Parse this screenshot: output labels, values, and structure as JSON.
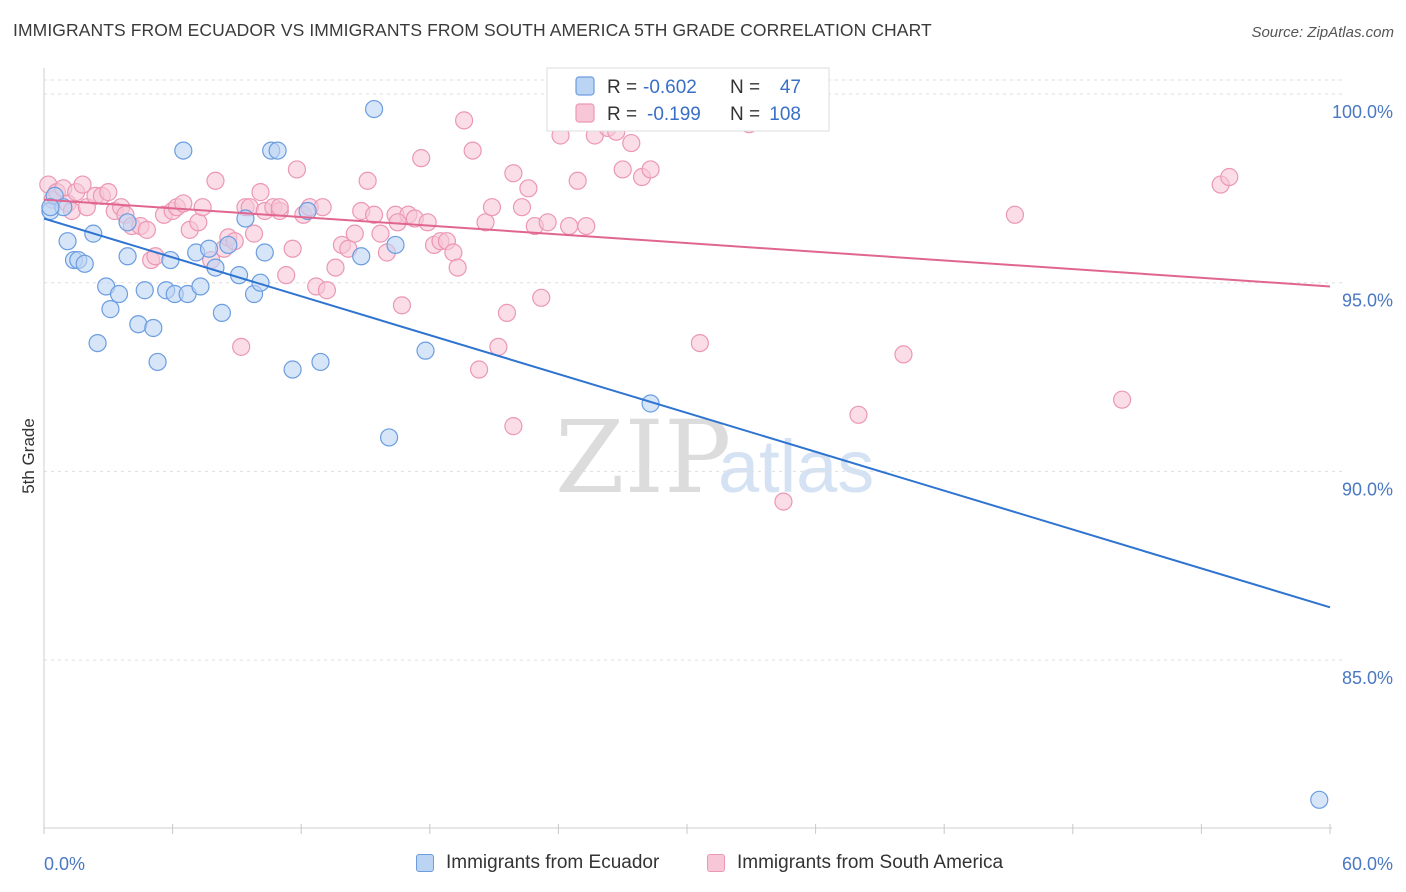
{
  "header": {
    "title": "IMMIGRANTS FROM ECUADOR VS IMMIGRANTS FROM SOUTH AMERICA 5TH GRADE CORRELATION CHART",
    "source": "Source: ZipAtlas.com"
  },
  "watermark": {
    "zip": "ZIP",
    "atlas": "atlas"
  },
  "chart_data": {
    "type": "scatter",
    "title": "IMMIGRANTS FROM ECUADOR VS IMMIGRANTS FROM SOUTH AMERICA 5TH GRADE CORRELATION CHART",
    "xlabel": "",
    "ylabel": "5th Grade",
    "xlim": [
      0,
      60
    ],
    "ylim": [
      80.5,
      100.9
    ],
    "x_tick_labels": [
      "0.0%",
      "60.0%"
    ],
    "y_ticks": [
      {
        "value": 100,
        "label": "100.0%"
      },
      {
        "value": 95,
        "label": "95.0%"
      },
      {
        "value": 90,
        "label": "90.0%"
      },
      {
        "value": 85,
        "label": "85.0%"
      }
    ],
    "grid": "horizontal dashed",
    "legend_position": "top-center",
    "series": [
      {
        "name": "Immigrants from Ecuador",
        "color": "#6b9de0",
        "fill": "#bcd4f3",
        "line_color": "#2f74d0",
        "R": "-0.602",
        "N": "47",
        "trend": {
          "x": [
            0,
            60
          ],
          "y": [
            96.7,
            86.4
          ]
        },
        "points": [
          [
            0.3,
            96.9
          ],
          [
            0.5,
            97.3
          ],
          [
            0.9,
            97.0
          ],
          [
            1.1,
            96.1
          ],
          [
            1.4,
            95.6
          ],
          [
            1.6,
            95.6
          ],
          [
            1.9,
            95.5
          ],
          [
            2.3,
            96.3
          ],
          [
            2.5,
            93.4
          ],
          [
            2.9,
            94.9
          ],
          [
            3.1,
            94.3
          ],
          [
            3.5,
            94.7
          ],
          [
            3.9,
            95.7
          ],
          [
            4.4,
            93.9
          ],
          [
            4.7,
            94.8
          ],
          [
            5.1,
            93.8
          ],
          [
            5.3,
            92.9
          ],
          [
            5.7,
            94.8
          ],
          [
            5.9,
            95.6
          ],
          [
            6.1,
            94.7
          ],
          [
            6.5,
            98.5
          ],
          [
            6.7,
            94.7
          ],
          [
            7.1,
            95.8
          ],
          [
            7.3,
            94.9
          ],
          [
            7.7,
            95.9
          ],
          [
            8.0,
            95.4
          ],
          [
            8.3,
            94.2
          ],
          [
            8.6,
            96.0
          ],
          [
            9.1,
            95.2
          ],
          [
            9.4,
            96.7
          ],
          [
            9.8,
            94.7
          ],
          [
            10.1,
            95.0
          ],
          [
            10.3,
            95.8
          ],
          [
            10.6,
            98.5
          ],
          [
            10.9,
            98.5
          ],
          [
            11.6,
            92.7
          ],
          [
            12.3,
            96.9
          ],
          [
            12.9,
            92.9
          ],
          [
            14.8,
            95.7
          ],
          [
            15.4,
            99.6
          ],
          [
            16.1,
            90.9
          ],
          [
            16.4,
            96.0
          ],
          [
            17.8,
            93.2
          ],
          [
            28.3,
            91.8
          ],
          [
            59.5,
            81.3
          ],
          [
            0.3,
            97.0
          ],
          [
            3.9,
            96.6
          ]
        ]
      },
      {
        "name": "Immigrants from South America",
        "color": "#ec97b4",
        "fill": "#f7c7d7",
        "line_color": "#e1668f",
        "R": "-0.199",
        "N": "108",
        "trend": {
          "x": [
            0,
            60
          ],
          "y": [
            97.2,
            94.9
          ]
        },
        "points": [
          [
            0.2,
            97.6
          ],
          [
            0.4,
            97.2
          ],
          [
            0.6,
            97.4
          ],
          [
            0.9,
            97.5
          ],
          [
            1.1,
            97.1
          ],
          [
            1.3,
            96.9
          ],
          [
            1.5,
            97.4
          ],
          [
            1.8,
            97.6
          ],
          [
            2.0,
            97.0
          ],
          [
            2.4,
            97.3
          ],
          [
            2.7,
            97.3
          ],
          [
            3.0,
            97.4
          ],
          [
            3.3,
            96.9
          ],
          [
            3.6,
            97.0
          ],
          [
            3.8,
            96.8
          ],
          [
            4.1,
            96.5
          ],
          [
            4.5,
            96.5
          ],
          [
            4.8,
            96.4
          ],
          [
            5.0,
            95.6
          ],
          [
            5.2,
            95.7
          ],
          [
            5.6,
            96.8
          ],
          [
            6.0,
            96.9
          ],
          [
            6.2,
            97.0
          ],
          [
            6.5,
            97.1
          ],
          [
            6.8,
            96.4
          ],
          [
            7.2,
            96.6
          ],
          [
            7.4,
            97.0
          ],
          [
            7.8,
            95.6
          ],
          [
            8.0,
            97.7
          ],
          [
            8.4,
            95.9
          ],
          [
            8.6,
            96.2
          ],
          [
            8.9,
            96.1
          ],
          [
            9.2,
            93.3
          ],
          [
            9.4,
            97.0
          ],
          [
            9.6,
            97.0
          ],
          [
            9.8,
            96.3
          ],
          [
            10.1,
            97.4
          ],
          [
            10.3,
            96.9
          ],
          [
            10.7,
            97.0
          ],
          [
            11.0,
            96.9
          ],
          [
            11.3,
            95.2
          ],
          [
            11.6,
            95.9
          ],
          [
            11.8,
            98.0
          ],
          [
            12.1,
            96.8
          ],
          [
            12.4,
            97.0
          ],
          [
            12.7,
            94.9
          ],
          [
            13.0,
            97.0
          ],
          [
            13.2,
            94.8
          ],
          [
            13.6,
            95.4
          ],
          [
            13.9,
            96.0
          ],
          [
            14.2,
            95.9
          ],
          [
            14.5,
            96.3
          ],
          [
            14.8,
            96.9
          ],
          [
            15.1,
            97.7
          ],
          [
            15.4,
            96.8
          ],
          [
            15.7,
            96.3
          ],
          [
            16.0,
            95.8
          ],
          [
            16.4,
            96.8
          ],
          [
            16.7,
            94.4
          ],
          [
            17.0,
            96.8
          ],
          [
            17.3,
            96.7
          ],
          [
            17.6,
            98.3
          ],
          [
            17.9,
            96.6
          ],
          [
            18.2,
            96.0
          ],
          [
            18.5,
            96.1
          ],
          [
            18.8,
            96.1
          ],
          [
            19.1,
            95.8
          ],
          [
            19.3,
            95.4
          ],
          [
            19.6,
            99.3
          ],
          [
            20.0,
            98.5
          ],
          [
            20.3,
            92.7
          ],
          [
            20.6,
            96.6
          ],
          [
            20.9,
            97.0
          ],
          [
            21.2,
            93.3
          ],
          [
            21.6,
            94.2
          ],
          [
            21.9,
            91.2
          ],
          [
            22.3,
            97.0
          ],
          [
            22.6,
            97.5
          ],
          [
            22.9,
            96.5
          ],
          [
            23.2,
            94.6
          ],
          [
            23.5,
            96.6
          ],
          [
            24.1,
            98.9
          ],
          [
            24.5,
            96.5
          ],
          [
            24.9,
            97.7
          ],
          [
            25.3,
            96.5
          ],
          [
            25.7,
            98.9
          ],
          [
            26.3,
            99.1
          ],
          [
            26.7,
            99.0
          ],
          [
            27.0,
            98.0
          ],
          [
            27.4,
            98.7
          ],
          [
            27.9,
            97.8
          ],
          [
            28.3,
            98.0
          ],
          [
            28.7,
            99.5
          ],
          [
            29.6,
            99.7
          ],
          [
            30.6,
            93.4
          ],
          [
            32.9,
            99.2
          ],
          [
            34.5,
            89.2
          ],
          [
            35.1,
            99.6
          ],
          [
            38.0,
            91.5
          ],
          [
            40.1,
            93.1
          ],
          [
            45.3,
            96.8
          ],
          [
            50.3,
            91.9
          ],
          [
            54.9,
            97.6
          ],
          [
            55.3,
            97.8
          ],
          [
            26.1,
            100.0
          ],
          [
            21.9,
            97.9
          ],
          [
            16.5,
            96.6
          ],
          [
            11.0,
            97.0
          ]
        ]
      }
    ]
  },
  "legend": {
    "rows": [
      {
        "r_label": "R =",
        "r_value": "-0.602",
        "n_label": "N =",
        "n_value": "47"
      },
      {
        "r_label": "R =",
        "r_value": "-0.199",
        "n_label": "N =",
        "n_value": "108"
      }
    ]
  },
  "bottom_legend": {
    "items": [
      {
        "label": "Immigrants from Ecuador"
      },
      {
        "label": "Immigrants from South America"
      }
    ]
  }
}
